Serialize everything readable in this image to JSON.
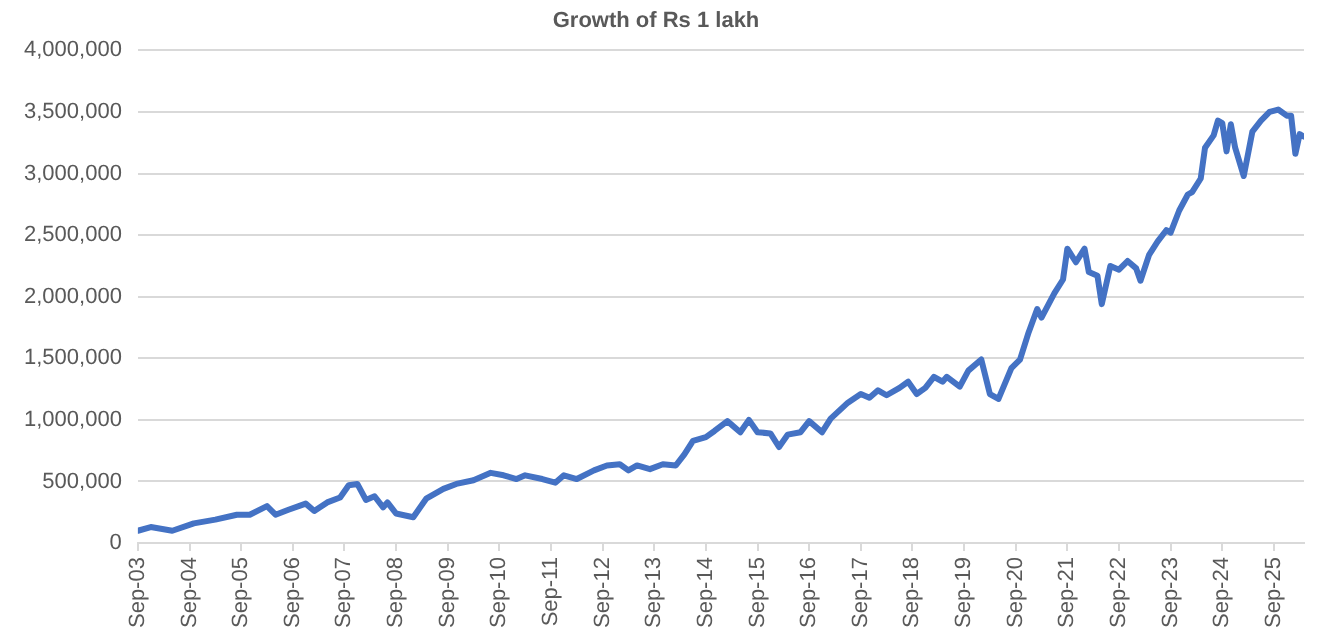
{
  "chart_data": {
    "type": "line",
    "title": "Growth of Rs 1 lakh",
    "x": [
      "2003-09",
      "2003-12",
      "2004-05",
      "2004-10",
      "2005-03",
      "2005-08",
      "2005-11",
      "2006-03",
      "2006-05",
      "2006-08",
      "2006-12",
      "2007-02",
      "2007-05",
      "2007-08",
      "2007-10",
      "2007-12",
      "2008-02",
      "2008-04",
      "2008-06",
      "2008-07",
      "2008-09",
      "2009-01",
      "2009-04",
      "2009-08",
      "2009-11",
      "2010-03",
      "2010-07",
      "2010-10",
      "2011-01",
      "2011-03",
      "2011-07",
      "2011-10",
      "2011-12",
      "2012-03",
      "2012-07",
      "2012-10",
      "2013-01",
      "2013-03",
      "2013-05",
      "2013-08",
      "2013-11",
      "2014-02",
      "2014-04",
      "2014-06",
      "2014-09",
      "2014-11",
      "2015-02",
      "2015-05",
      "2015-07",
      "2015-09",
      "2015-12",
      "2016-02",
      "2016-04",
      "2016-07",
      "2016-09",
      "2016-12",
      "2017-02",
      "2017-06",
      "2017-09",
      "2017-11",
      "2018-01",
      "2018-03",
      "2018-06",
      "2018-08",
      "2018-10",
      "2018-12",
      "2019-02",
      "2019-04",
      "2019-05",
      "2019-08",
      "2019-10",
      "2020-01",
      "2020-03",
      "2020-05",
      "2020-08",
      "2020-10",
      "2020-12",
      "2021-02",
      "2021-03",
      "2021-06",
      "2021-08",
      "2021-09",
      "2021-11",
      "2022-01",
      "2022-02",
      "2022-04",
      "2022-05",
      "2022-07",
      "2022-09",
      "2022-11",
      "2023-01",
      "2023-02",
      "2023-04",
      "2023-06",
      "2023-08",
      "2023-09",
      "2023-11",
      "2024-01",
      "2024-02",
      "2024-04",
      "2024-05",
      "2024-07",
      "2024-08",
      "2024-09",
      "2024-10",
      "2024-11",
      "2024-12",
      "2025-02",
      "2025-04",
      "2025-06",
      "2025-08",
      "2025-10",
      "2025-12",
      "2026-01",
      "2026-02",
      "2026-03",
      "2026-04"
    ],
    "series": [
      {
        "color": "#4472c4",
        "values": [
          100000,
          130000,
          100000,
          160000,
          190000,
          230000,
          230000,
          300000,
          230000,
          270000,
          320000,
          260000,
          330000,
          370000,
          470000,
          480000,
          350000,
          380000,
          290000,
          330000,
          240000,
          210000,
          360000,
          440000,
          480000,
          510000,
          570000,
          550000,
          520000,
          550000,
          520000,
          490000,
          550000,
          520000,
          590000,
          630000,
          640000,
          590000,
          630000,
          600000,
          640000,
          630000,
          720000,
          830000,
          860000,
          910000,
          990000,
          900000,
          1000000,
          900000,
          890000,
          780000,
          880000,
          900000,
          990000,
          900000,
          1010000,
          1140000,
          1210000,
          1180000,
          1240000,
          1200000,
          1260000,
          1310000,
          1210000,
          1260000,
          1350000,
          1310000,
          1350000,
          1270000,
          1400000,
          1490000,
          1210000,
          1170000,
          1420000,
          1490000,
          1710000,
          1900000,
          1830000,
          2030000,
          2140000,
          2390000,
          2280000,
          2390000,
          2200000,
          2170000,
          1940000,
          2250000,
          2220000,
          2290000,
          2230000,
          2130000,
          2340000,
          2450000,
          2540000,
          2520000,
          2700000,
          2830000,
          2850000,
          2960000,
          3210000,
          3310000,
          3430000,
          3410000,
          3180000,
          3400000,
          3210000,
          2980000,
          3340000,
          3430000,
          3500000,
          3520000,
          3470000,
          3470000,
          3160000,
          3320000,
          3300000
        ]
      }
    ],
    "xlim": [
      "2003-09",
      "2026-04"
    ],
    "xticks": [
      {
        "value": "2003-09",
        "label": "Sep-03"
      },
      {
        "value": "2004-09",
        "label": "Sep-04"
      },
      {
        "value": "2005-09",
        "label": "Sep-05"
      },
      {
        "value": "2006-09",
        "label": "Sep-06"
      },
      {
        "value": "2007-09",
        "label": "Sep-07"
      },
      {
        "value": "2008-09",
        "label": "Sep-08"
      },
      {
        "value": "2009-09",
        "label": "Sep-09"
      },
      {
        "value": "2010-09",
        "label": "Sep-10"
      },
      {
        "value": "2011-09",
        "label": "Sep-11"
      },
      {
        "value": "2012-09",
        "label": "Sep-12"
      },
      {
        "value": "2013-09",
        "label": "Sep-13"
      },
      {
        "value": "2014-09",
        "label": "Sep-14"
      },
      {
        "value": "2015-09",
        "label": "Sep-15"
      },
      {
        "value": "2016-09",
        "label": "Sep-16"
      },
      {
        "value": "2017-09",
        "label": "Sep-17"
      },
      {
        "value": "2018-09",
        "label": "Sep-18"
      },
      {
        "value": "2019-09",
        "label": "Sep-19"
      },
      {
        "value": "2020-09",
        "label": "Sep-20"
      },
      {
        "value": "2021-09",
        "label": "Sep-21"
      },
      {
        "value": "2022-09",
        "label": "Sep-22"
      },
      {
        "value": "2023-09",
        "label": "Sep-23"
      },
      {
        "value": "2024-09",
        "label": "Sep-24"
      },
      {
        "value": "2025-09",
        "label": "Sep-25"
      }
    ],
    "ylim": [
      0,
      4000000
    ],
    "yticks": [
      {
        "value": 0,
        "label": "0"
      },
      {
        "value": 500000,
        "label": "500,000"
      },
      {
        "value": 1000000,
        "label": "1,000,000"
      },
      {
        "value": 1500000,
        "label": "1,500,000"
      },
      {
        "value": 2000000,
        "label": "2,000,000"
      },
      {
        "value": 2500000,
        "label": "2,500,000"
      },
      {
        "value": 3000000,
        "label": "3,000,000"
      },
      {
        "value": 3500000,
        "label": "3,500,000"
      },
      {
        "value": 4000000,
        "label": "4,000,000"
      }
    ],
    "grid": "y",
    "legend": false,
    "marker": "none",
    "line_style": "solid"
  }
}
